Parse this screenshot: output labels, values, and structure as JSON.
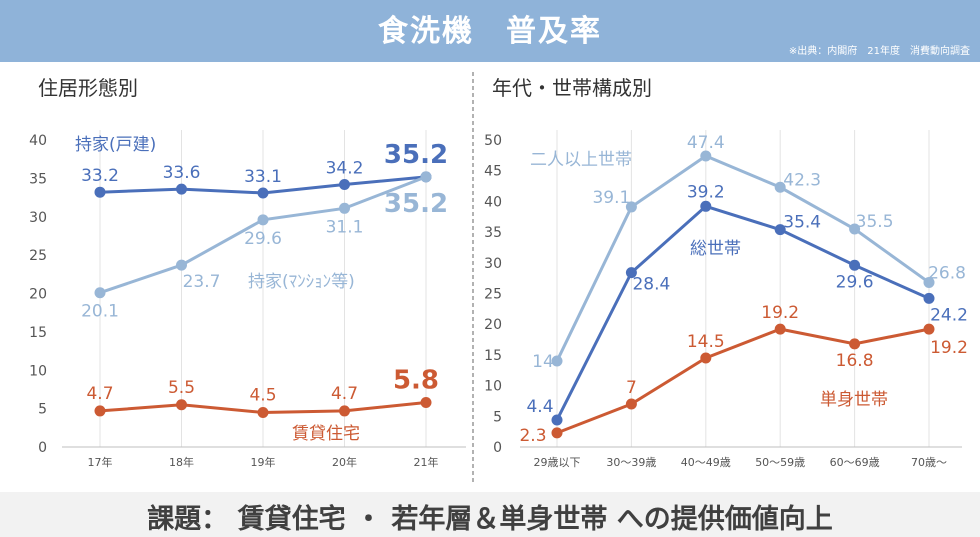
{
  "header": {
    "title": "食洗機　普及率",
    "source": "※出典：内閣府　21年度　消費動向調査"
  },
  "footer": {
    "text": "課題：  賃貸住宅 ・ 若年層＆単身世帯 への提供価値向上"
  },
  "colors": {
    "title_bg": "#8fb3d9",
    "dark_blue": "#4a6fba",
    "light_blue": "#98b6d6",
    "orange": "#cc5a33",
    "footer_bg": "#f2f2f2"
  },
  "chart_data": [
    {
      "type": "line",
      "title": "住居形態別",
      "categories": [
        "17年",
        "18年",
        "19年",
        "20年",
        "21年"
      ],
      "yticks": [
        "0",
        "5",
        "10",
        "15",
        "20",
        "25",
        "30",
        "35",
        "40"
      ],
      "ylim": [
        0,
        40
      ],
      "grid": "vertical",
      "series": [
        {
          "name": "持家(戸建)",
          "color": "#4a6fba",
          "values": [
            33.2,
            33.6,
            33.1,
            34.2,
            35.2
          ],
          "labels": [
            "33.2",
            "33.6",
            "33.1",
            "34.2",
            "35.2"
          ]
        },
        {
          "name": "持家(ﾏﾝｼｮﾝ等)",
          "color": "#98b6d6",
          "values": [
            20.1,
            23.7,
            29.6,
            31.1,
            35.2
          ],
          "labels": [
            "20.1",
            "23.7",
            "29.6",
            "31.1",
            "35.2"
          ]
        },
        {
          "name": "賃貸住宅",
          "color": "#cc5a33",
          "values": [
            4.7,
            5.5,
            4.5,
            4.7,
            5.8
          ],
          "labels": [
            "4.7",
            "5.5",
            "4.5",
            "4.7",
            "5.8"
          ]
        }
      ]
    },
    {
      "type": "line",
      "title": "年代・世帯構成別",
      "categories": [
        "29歳以下",
        "30～39歳",
        "40～49歳",
        "50～59歳",
        "60～69歳",
        "70歳～"
      ],
      "yticks": [
        "0",
        "5",
        "10",
        "15",
        "20",
        "25",
        "30",
        "35",
        "40",
        "45",
        "50"
      ],
      "ylim": [
        0,
        50
      ],
      "grid": "vertical",
      "series": [
        {
          "name": "二人以上世帯",
          "color": "#98b6d6",
          "values": [
            14,
            39.1,
            47.4,
            42.3,
            35.5,
            26.8
          ],
          "labels": [
            "14",
            "39.1",
            "47.4",
            "42.3",
            "35.5",
            "26.8"
          ]
        },
        {
          "name": "総世帯",
          "color": "#4a6fba",
          "values": [
            4.4,
            28.4,
            39.2,
            35.4,
            29.6,
            24.2
          ],
          "labels": [
            "4.4",
            "28.4",
            "39.2",
            "35.4",
            "29.6",
            "24.2"
          ]
        },
        {
          "name": "単身世帯",
          "color": "#cc5a33",
          "values": [
            2.3,
            7,
            14.5,
            19.2,
            16.8,
            19.2
          ],
          "labels": [
            "2.3",
            "7",
            "14.5",
            "19.2",
            "16.8",
            "19.2"
          ]
        }
      ]
    }
  ]
}
